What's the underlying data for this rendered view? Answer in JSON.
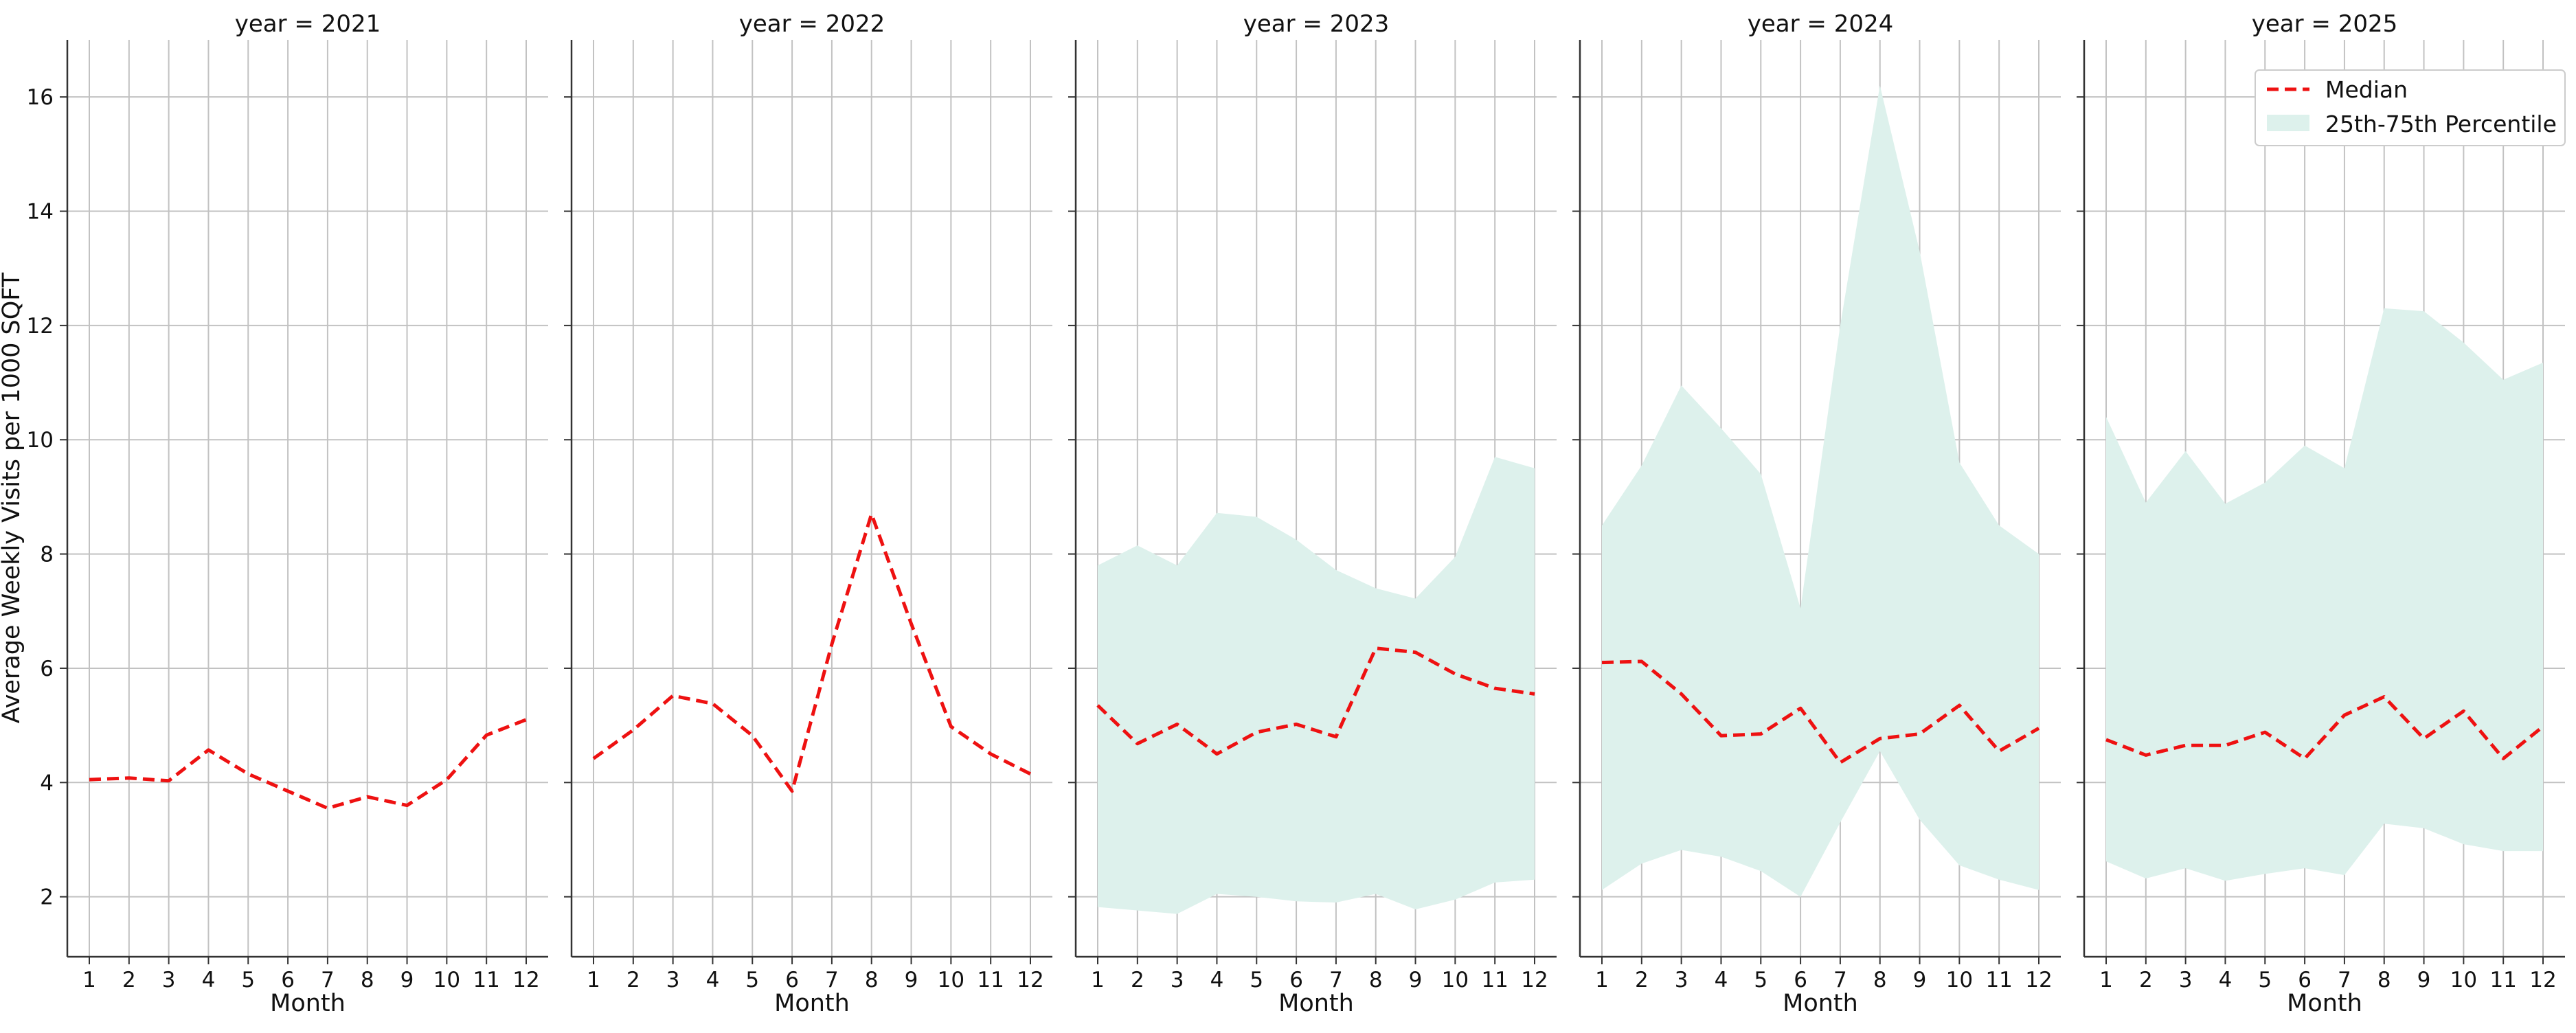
{
  "chart_data": {
    "type": "line",
    "ylabel": "Average Weekly Visits per 1000 SQFT",
    "xlabel": "Month",
    "x": [
      1,
      2,
      3,
      4,
      5,
      6,
      7,
      8,
      9,
      10,
      11,
      12
    ],
    "x_tick_labels": [
      "1",
      "2",
      "3",
      "4",
      "5",
      "6",
      "7",
      "8",
      "9",
      "10",
      "11",
      "12"
    ],
    "ylim": [
      0.95,
      17.0
    ],
    "y_ticks": [
      2,
      4,
      6,
      8,
      10,
      12,
      14,
      16
    ],
    "y_tick_labels": [
      "2",
      "4",
      "6",
      "8",
      "10",
      "12",
      "14",
      "16"
    ],
    "grid": true,
    "sharey": true,
    "legend": {
      "placement": "top-right of last panel",
      "entries": [
        "Median",
        "25th-75th Percentile"
      ]
    },
    "colors": {
      "median": "#ee1111",
      "band": "#ddf1ec",
      "grid": "#c2c2c2",
      "axis": "#333333"
    },
    "panels": [
      {
        "title": "year = 2021",
        "median": [
          4.05,
          4.08,
          4.03,
          4.57,
          4.15,
          3.85,
          3.55,
          3.75,
          3.6,
          4.05,
          4.83,
          5.1
        ],
        "p25": null,
        "p75": null
      },
      {
        "title": "year = 2022",
        "median": [
          4.42,
          4.92,
          5.52,
          5.38,
          4.82,
          3.85,
          6.42,
          8.7,
          6.78,
          4.98,
          4.5,
          4.15
        ],
        "p25": null,
        "p75": null
      },
      {
        "title": "year = 2023",
        "median": [
          5.35,
          4.68,
          5.02,
          4.5,
          4.88,
          5.02,
          4.8,
          6.35,
          6.28,
          5.9,
          5.65,
          5.55
        ],
        "p25": [
          1.82,
          1.76,
          1.7,
          2.05,
          2.0,
          1.92,
          1.9,
          2.05,
          1.78,
          1.95,
          2.25,
          2.3
        ],
        "p75": [
          7.8,
          8.15,
          7.8,
          8.72,
          8.65,
          8.25,
          7.72,
          7.4,
          7.22,
          7.95,
          9.7,
          9.5
        ]
      },
      {
        "title": "year = 2024",
        "median": [
          6.1,
          6.12,
          5.55,
          4.82,
          4.85,
          5.3,
          4.35,
          4.77,
          4.85,
          5.35,
          4.55,
          4.95
        ],
        "p25": [
          2.12,
          2.58,
          2.82,
          2.7,
          2.45,
          2.0,
          3.3,
          4.55,
          3.35,
          2.55,
          2.3,
          2.12
        ],
        "p75": [
          8.5,
          9.55,
          10.95,
          10.2,
          9.4,
          7.05,
          12.0,
          16.2,
          13.3,
          9.6,
          8.5,
          8.0
        ]
      },
      {
        "title": "year = 2025",
        "median": [
          4.75,
          4.48,
          4.65,
          4.65,
          4.88,
          4.42,
          5.18,
          5.5,
          4.77,
          5.25,
          4.42,
          4.98
        ],
        "p25": [
          2.62,
          2.32,
          2.5,
          2.28,
          2.4,
          2.5,
          2.38,
          3.28,
          3.2,
          2.92,
          2.8,
          2.8
        ],
        "p75": [
          10.4,
          8.9,
          9.8,
          8.88,
          9.25,
          9.9,
          9.5,
          12.3,
          12.25,
          11.7,
          11.05,
          11.35
        ]
      }
    ]
  }
}
